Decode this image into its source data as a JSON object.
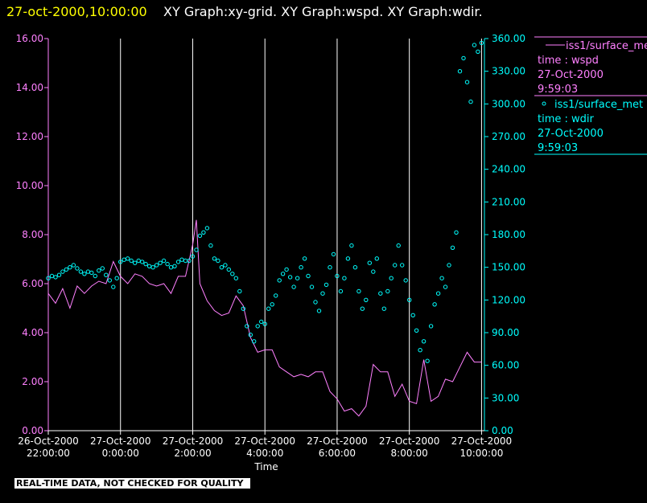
{
  "header": {
    "timestamp": "27-oct-2000,10:00:00",
    "graphs": "XY Graph:xy-grid.  XY Graph:wspd.  XY Graph:wdir."
  },
  "footer": {
    "banner": "REAL-TIME DATA, NOT CHECKED FOR QUALITY"
  },
  "legend": {
    "entries": [
      {
        "symbol": "line",
        "name": "iss1/surface_met",
        "var": "time : wspd",
        "date": "27-Oct-2000",
        "time": "9:59:03",
        "color": "#ff80ff"
      },
      {
        "symbol": "circle",
        "name": "iss1/surface_met",
        "var": "time : wdir",
        "date": "27-Oct-2000",
        "time": "9:59:03",
        "color": "#00ffff"
      }
    ]
  },
  "chart_data": {
    "type": "line",
    "xlabel": "Time",
    "xlim_hours": [
      -2,
      10.08
    ],
    "x_ticks": [
      {
        "h": -2,
        "date": "26-Oct-2000",
        "time": "22:00:00"
      },
      {
        "h": 0,
        "date": "27-Oct-2000",
        "time": "0:00:00"
      },
      {
        "h": 2,
        "date": "27-Oct-2000",
        "time": "2:00:00"
      },
      {
        "h": 4,
        "date": "27-Oct-2000",
        "time": "4:00:00"
      },
      {
        "h": 6,
        "date": "27-Oct-2000",
        "time": "6:00:00"
      },
      {
        "h": 8,
        "date": "27-Oct-2000",
        "time": "8:00:00"
      },
      {
        "h": 10,
        "date": "27-Oct-2000",
        "time": "10:00:00"
      }
    ],
    "left_axis": {
      "ylim": [
        0,
        16
      ],
      "ticks": [
        "0.00",
        "2.00",
        "4.00",
        "6.00",
        "8.00",
        "10.00",
        "12.00",
        "14.00",
        "16.00"
      ],
      "color": "#ff80ff"
    },
    "right_axis": {
      "ylim": [
        0,
        360
      ],
      "ticks": [
        "0.00",
        "30.00",
        "60.00",
        "90.00",
        "120.00",
        "150.00",
        "180.00",
        "210.00",
        "240.00",
        "270.00",
        "300.00",
        "330.00",
        "360.00"
      ],
      "color": "#00ffff"
    },
    "vertical_grid_hours": [
      0,
      2,
      4,
      6,
      8,
      10
    ],
    "series": [
      {
        "name": "iss1/surface_met time : wspd",
        "axis": "left",
        "style": "line",
        "color": "#ff80ff",
        "x_hours": [
          -2.0,
          -1.8,
          -1.6,
          -1.4,
          -1.2,
          -1.0,
          -0.8,
          -0.6,
          -0.4,
          -0.2,
          0.0,
          0.2,
          0.4,
          0.6,
          0.8,
          1.0,
          1.2,
          1.4,
          1.6,
          1.8,
          2.0,
          2.1,
          2.2,
          2.4,
          2.6,
          2.8,
          3.0,
          3.2,
          3.4,
          3.6,
          3.8,
          4.0,
          4.2,
          4.4,
          4.6,
          4.8,
          5.0,
          5.2,
          5.4,
          5.6,
          5.8,
          6.0,
          6.2,
          6.4,
          6.6,
          6.8,
          7.0,
          7.2,
          7.4,
          7.6,
          7.8,
          8.0,
          8.2,
          8.4,
          8.6,
          8.8,
          9.0,
          9.2,
          9.4,
          9.6,
          9.8,
          10.0
        ],
        "values": [
          5.6,
          5.2,
          5.8,
          5.0,
          5.9,
          5.6,
          5.9,
          6.1,
          6.0,
          6.9,
          6.3,
          6.0,
          6.4,
          6.3,
          6.0,
          5.9,
          6.0,
          5.6,
          6.3,
          6.3,
          7.6,
          8.6,
          6.0,
          5.3,
          4.9,
          4.7,
          4.8,
          5.5,
          5.1,
          3.8,
          3.2,
          3.3,
          3.3,
          2.6,
          2.4,
          2.2,
          2.3,
          2.2,
          2.4,
          2.4,
          1.6,
          1.3,
          0.8,
          0.9,
          0.6,
          1.0,
          2.7,
          2.4,
          2.4,
          1.4,
          1.9,
          1.2,
          1.1,
          2.9,
          1.2,
          1.4,
          2.1,
          2.0,
          2.6,
          3.2,
          2.8,
          2.8
        ]
      },
      {
        "name": "iss1/surface_met time : wdir",
        "axis": "right",
        "style": "circle",
        "color": "#00ffff",
        "x_hours": [
          -2.0,
          -1.9,
          -1.8,
          -1.7,
          -1.6,
          -1.5,
          -1.4,
          -1.3,
          -1.2,
          -1.1,
          -1.0,
          -0.9,
          -0.8,
          -0.7,
          -0.6,
          -0.5,
          -0.4,
          -0.3,
          -0.2,
          -0.1,
          0.0,
          0.1,
          0.2,
          0.3,
          0.4,
          0.5,
          0.6,
          0.7,
          0.8,
          0.9,
          1.0,
          1.1,
          1.2,
          1.3,
          1.4,
          1.5,
          1.6,
          1.7,
          1.8,
          1.9,
          2.0,
          2.1,
          2.2,
          2.3,
          2.4,
          2.5,
          2.6,
          2.7,
          2.8,
          2.9,
          3.0,
          3.1,
          3.2,
          3.3,
          3.4,
          3.5,
          3.6,
          3.7,
          3.8,
          3.9,
          4.0,
          4.1,
          4.2,
          4.3,
          4.4,
          4.5,
          4.6,
          4.7,
          4.8,
          4.9,
          5.0,
          5.1,
          5.2,
          5.3,
          5.4,
          5.5,
          5.6,
          5.7,
          5.8,
          5.9,
          6.0,
          6.1,
          6.2,
          6.3,
          6.4,
          6.5,
          6.6,
          6.7,
          6.8,
          6.9,
          7.0,
          7.1,
          7.2,
          7.3,
          7.4,
          7.5,
          7.6,
          7.7,
          7.8,
          7.9,
          8.0,
          8.1,
          8.2,
          8.3,
          8.4,
          8.5,
          8.6,
          8.7,
          8.8,
          8.9,
          9.0,
          9.1,
          9.2,
          9.3,
          9.4,
          9.5,
          9.6,
          9.7,
          9.8,
          9.9,
          10.0
        ],
        "values": [
          140,
          142,
          141,
          143,
          146,
          148,
          150,
          152,
          149,
          146,
          144,
          146,
          145,
          142,
          147,
          149,
          143,
          138,
          132,
          140,
          155,
          157,
          158,
          156,
          154,
          156,
          155,
          153,
          151,
          150,
          152,
          154,
          156,
          153,
          150,
          151,
          155,
          157,
          156,
          156,
          160,
          166,
          179,
          182,
          186,
          170,
          158,
          156,
          150,
          152,
          148,
          144,
          140,
          128,
          112,
          96,
          88,
          82,
          96,
          100,
          98,
          112,
          116,
          124,
          138,
          144,
          148,
          141,
          132,
          140,
          150,
          158,
          142,
          132,
          118,
          110,
          126,
          134,
          150,
          162,
          142,
          128,
          140,
          158,
          170,
          150,
          128,
          112,
          120,
          154,
          146,
          158,
          126,
          112,
          128,
          140,
          152,
          170,
          152,
          138,
          120,
          106,
          92,
          74,
          82,
          64,
          96,
          116,
          126,
          140,
          132,
          152,
          168,
          182,
          330,
          342,
          320,
          302,
          354,
          348,
          356
        ]
      }
    ]
  }
}
